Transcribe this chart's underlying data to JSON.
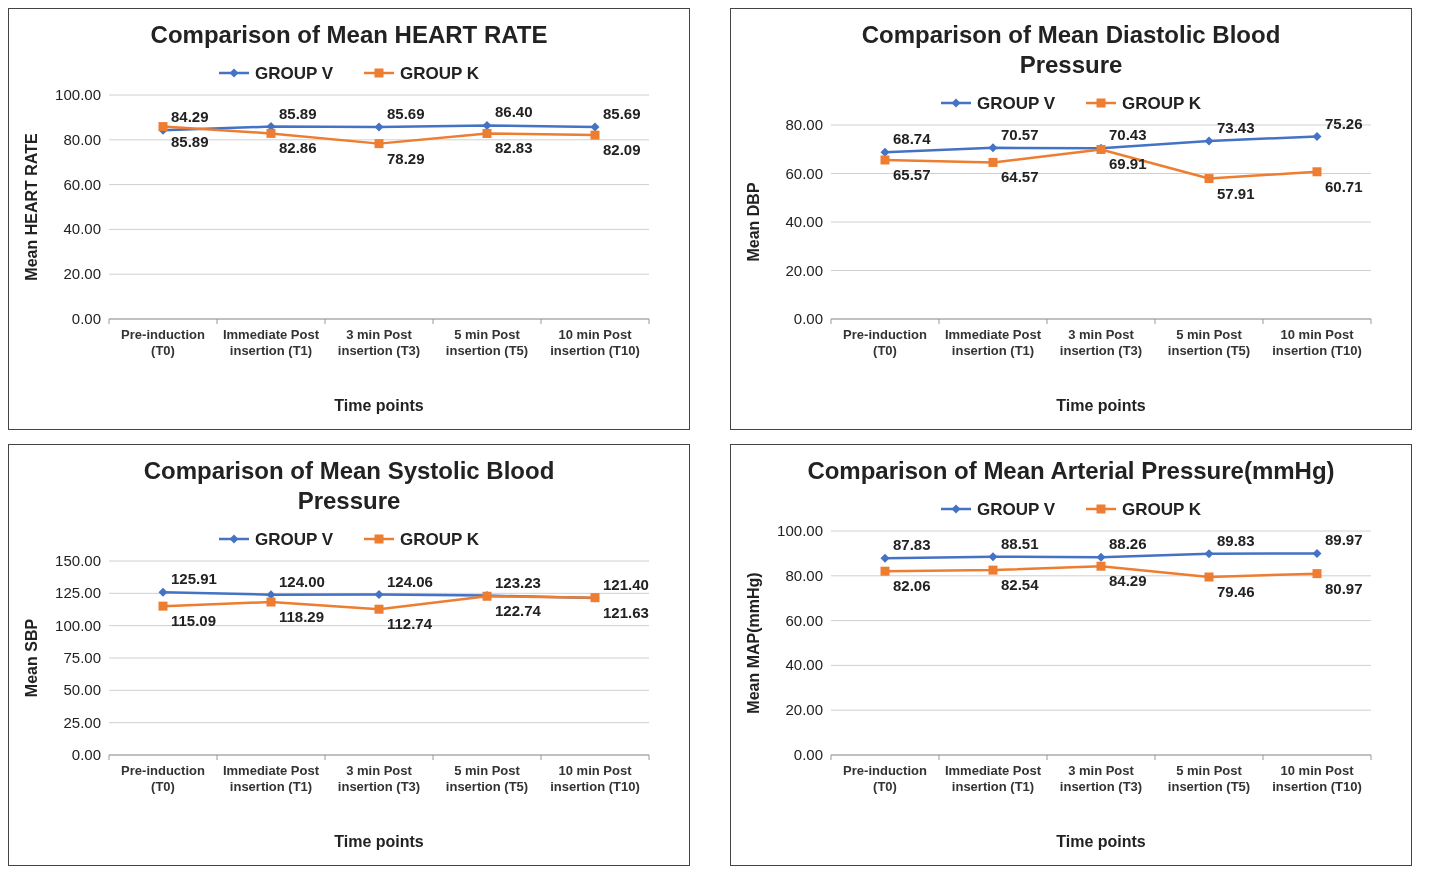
{
  "chart_data": [
    {
      "type": "line",
      "title": "Comparison of Mean HEART RATE",
      "xlabel": "Time points",
      "ylabel": "Mean HEART RATE",
      "categories": [
        "Pre-induction (T0)",
        "Immediate Post insertion (T1)",
        "3 min Post insertion (T3)",
        "5 min Post insertion (T5)",
        "10 min Post insertion (T10)"
      ],
      "series": [
        {
          "name": "GROUP V",
          "color": "#4472c4",
          "marker": "diamond",
          "values": [
            84.29,
            85.89,
            85.69,
            86.4,
            85.69
          ],
          "value_labels": [
            "84.29",
            "85.89",
            "85.69",
            "86.40",
            "85.69"
          ]
        },
        {
          "name": "GROUP K",
          "color": "#ed7d31",
          "marker": "square",
          "values": [
            85.89,
            82.86,
            78.29,
            82.83,
            82.09
          ],
          "value_labels": [
            "85.89",
            "82.86",
            "78.29",
            "82.83",
            "82.09"
          ]
        }
      ],
      "ylim": [
        0,
        100
      ],
      "yticks": [
        {
          "value": 0,
          "label": "0.00"
        },
        {
          "value": 20,
          "label": "20.00"
        },
        {
          "value": 40,
          "label": "40.00"
        },
        {
          "value": 60,
          "label": "60.00"
        },
        {
          "value": 80,
          "label": "80.00"
        },
        {
          "value": 100,
          "label": "100.00"
        }
      ],
      "grid": "y",
      "legend": "top"
    },
    {
      "type": "line",
      "title": "Comparison of  Mean Diastolic Blood Pressure",
      "xlabel": "Time points",
      "ylabel": "Mean DBP",
      "categories": [
        "Pre-induction (T0)",
        "Immediate Post insertion (T1)",
        "3 min Post insertion (T3)",
        "5 min Post insertion (T5)",
        "10 min Post insertion (T10)"
      ],
      "series": [
        {
          "name": "GROUP V",
          "color": "#4472c4",
          "marker": "diamond",
          "values": [
            68.74,
            70.57,
            70.43,
            73.43,
            75.26
          ],
          "value_labels": [
            "68.74",
            "70.57",
            "70.43",
            "73.43",
            "75.26"
          ]
        },
        {
          "name": "GROUP K",
          "color": "#ed7d31",
          "marker": "square",
          "values": [
            65.57,
            64.57,
            69.91,
            57.91,
            60.71
          ],
          "value_labels": [
            "65.57",
            "64.57",
            "69.91",
            "57.91",
            "60.71"
          ]
        }
      ],
      "ylim": [
        0,
        80
      ],
      "yticks": [
        {
          "value": 0,
          "label": "0.00"
        },
        {
          "value": 20,
          "label": "20.00"
        },
        {
          "value": 40,
          "label": "40.00"
        },
        {
          "value": 60,
          "label": "60.00"
        },
        {
          "value": 80,
          "label": "80.00"
        }
      ],
      "grid": "y",
      "legend": "top"
    },
    {
      "type": "line",
      "title": "Comparison of  Mean Systolic Blood Pressure",
      "xlabel": "Time points",
      "ylabel": "Mean SBP",
      "categories": [
        "Pre-induction (T0)",
        "Immediate Post insertion (T1)",
        "3 min Post insertion (T3)",
        "5 min Post insertion (T5)",
        "10 min Post insertion (T10)"
      ],
      "series": [
        {
          "name": "GROUP V",
          "color": "#4472c4",
          "marker": "diamond",
          "values": [
            125.91,
            124.0,
            124.06,
            123.23,
            121.4
          ],
          "value_labels": [
            "125.91",
            "124.00",
            "124.06",
            "123.23",
            "121.40"
          ]
        },
        {
          "name": "GROUP K",
          "color": "#ed7d31",
          "marker": "square",
          "values": [
            115.09,
            118.29,
            112.74,
            122.74,
            121.63
          ],
          "value_labels": [
            "115.09",
            "118.29",
            "112.74",
            "122.74",
            "121.63"
          ]
        }
      ],
      "ylim": [
        0,
        150
      ],
      "yticks": [
        {
          "value": 0,
          "label": "0.00"
        },
        {
          "value": 25,
          "label": "25.00"
        },
        {
          "value": 50,
          "label": "50.00"
        },
        {
          "value": 75,
          "label": "75.00"
        },
        {
          "value": 100,
          "label": "100.00"
        },
        {
          "value": 125,
          "label": "125.00"
        },
        {
          "value": 150,
          "label": "150.00"
        }
      ],
      "grid": "y",
      "legend": "top"
    },
    {
      "type": "line",
      "title": "Comparison of Mean Arterial Pressure(mmHg)",
      "xlabel": "Time points",
      "ylabel": "Mean  MAP(mmHg)",
      "categories": [
        "Pre-induction (T0)",
        "Immediate Post insertion (T1)",
        "3 min Post insertion (T3)",
        "5 min Post insertion (T5)",
        "10 min Post insertion (T10)"
      ],
      "series": [
        {
          "name": "GROUP V",
          "color": "#4472c4",
          "marker": "diamond",
          "values": [
            87.83,
            88.51,
            88.26,
            89.83,
            89.97
          ],
          "value_labels": [
            "87.83",
            "88.51",
            "88.26",
            "89.83",
            "89.97"
          ]
        },
        {
          "name": "GROUP K",
          "color": "#ed7d31",
          "marker": "square",
          "values": [
            82.06,
            82.54,
            84.29,
            79.46,
            80.97
          ],
          "value_labels": [
            "82.06",
            "82.54",
            "84.29",
            "79.46",
            "80.97"
          ]
        }
      ],
      "ylim": [
        0,
        100
      ],
      "yticks": [
        {
          "value": 0,
          "label": "0.00"
        },
        {
          "value": 20,
          "label": "20.00"
        },
        {
          "value": 40,
          "label": "40.00"
        },
        {
          "value": 60,
          "label": "60.00"
        },
        {
          "value": 80,
          "label": "80.00"
        },
        {
          "value": 100,
          "label": "100.00"
        }
      ],
      "grid": "y",
      "legend": "top"
    }
  ]
}
